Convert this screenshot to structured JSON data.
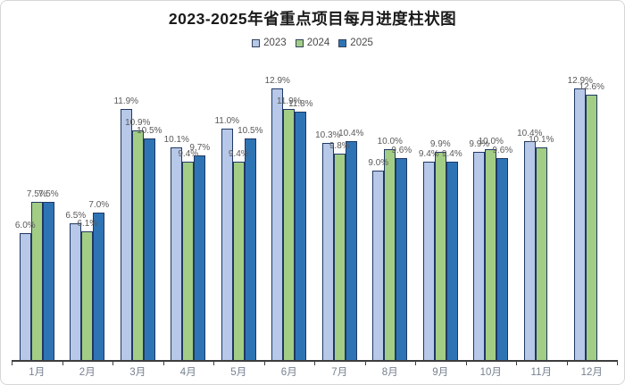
{
  "chart_data": {
    "type": "bar",
    "title": "2023-2025年省重点项目每月进度柱状图",
    "categories": [
      "1月",
      "2月",
      "3月",
      "4月",
      "5月",
      "6月",
      "7月",
      "8月",
      "9月",
      "10月",
      "11月",
      "12月"
    ],
    "series": [
      {
        "name": "2023",
        "color": "#b7c8e8",
        "values": [
          6.0,
          6.5,
          11.9,
          10.1,
          11.0,
          12.9,
          10.3,
          9.0,
          9.4,
          9.9,
          10.4,
          12.9
        ]
      },
      {
        "name": "2024",
        "color": "#a3cd85",
        "values": [
          7.5,
          6.1,
          10.9,
          9.4,
          9.4,
          11.9,
          9.8,
          10.0,
          9.9,
          10.0,
          10.1,
          12.6
        ]
      },
      {
        "name": "2025",
        "color": "#2e74b5",
        "values": [
          7.5,
          7.0,
          10.5,
          9.7,
          10.5,
          11.8,
          10.4,
          9.6,
          9.4,
          9.6,
          null,
          null
        ]
      }
    ],
    "label_format": "{value}%",
    "xlabel": "",
    "ylabel": "",
    "ylim": [
      0,
      14.5
    ],
    "grid": false,
    "legend_position": "top",
    "colors": {
      "bar_border": "#1f3864",
      "axis": "#3d3d3d",
      "data_label": "#595959",
      "category_label": "#76808f",
      "title": "#1a1a1a"
    }
  }
}
